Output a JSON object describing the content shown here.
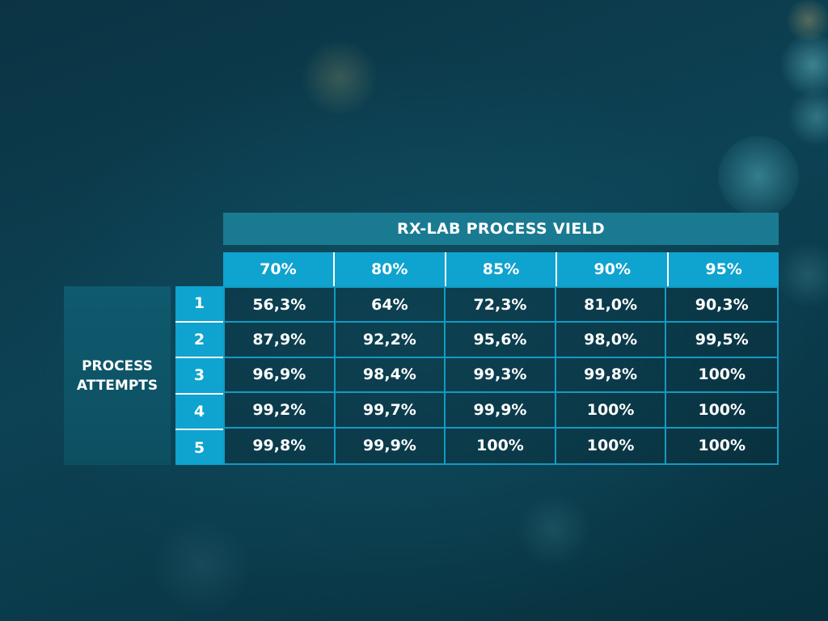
{
  "table": {
    "title": "RX-LAB PROCESS VIELD",
    "column_headers": [
      "70%",
      "80%",
      "85%",
      "90%",
      "95%"
    ],
    "row_label_line1": "PROCESS",
    "row_label_line2": "ATTEMPTS",
    "row_indices": [
      "1",
      "2",
      "3",
      "4",
      "5"
    ],
    "rows": [
      [
        "56,3%",
        "64%",
        "72,3%",
        "81,0%",
        "90,3%"
      ],
      [
        "87,9%",
        "92,2%",
        "95,6%",
        "98,0%",
        "99,5%"
      ],
      [
        "96,9%",
        "98,4%",
        "99,3%",
        "99,8%",
        "100%"
      ],
      [
        "99,2%",
        "99,7%",
        "99,9%",
        "100%",
        "100%"
      ],
      [
        "99,8%",
        "99,9%",
        "100%",
        "100%",
        "100%"
      ]
    ]
  },
  "colors": {
    "title_band": "#1a7a91",
    "header_band": "#0fa3cf",
    "grid_line": "#129bc2",
    "label_block": "#0f5a6e",
    "background": "#0c4254"
  }
}
